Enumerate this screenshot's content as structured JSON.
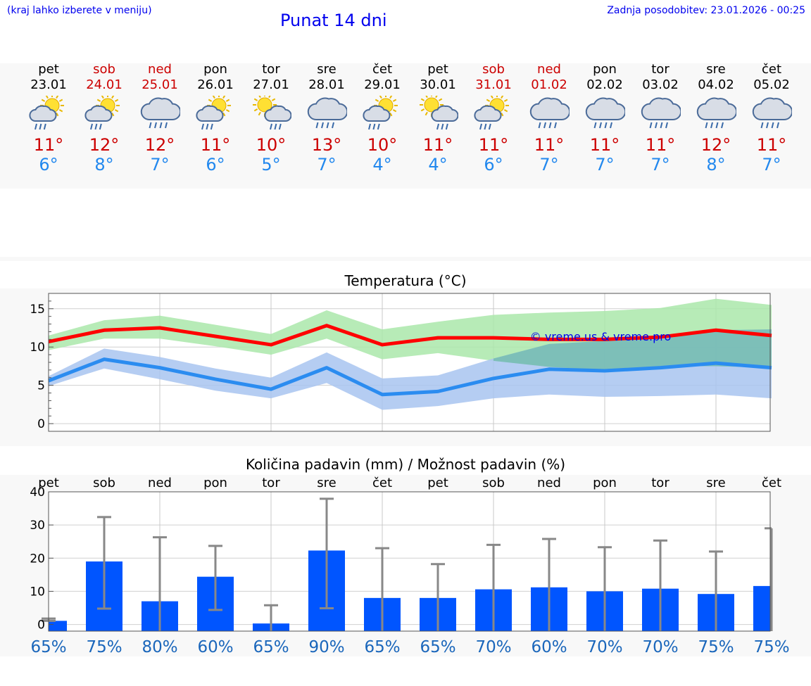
{
  "header": {
    "hint": "(kraj lahko izberete v meniju)",
    "title": "Punat 14 dni",
    "updated_label": "Zadnja posodobitev:",
    "updated_value": "23.01.2026 - 00:25"
  },
  "days": [
    {
      "name": "pet",
      "date": "23.01",
      "weekend": false,
      "icon": "sun-cloud-rain-icon",
      "tmax": "11°",
      "tmin": "6°"
    },
    {
      "name": "sob",
      "date": "24.01",
      "weekend": true,
      "icon": "sun-cloud-rain-icon",
      "tmax": "12°",
      "tmin": "8°"
    },
    {
      "name": "ned",
      "date": "25.01",
      "weekend": true,
      "icon": "cloud-rain-icon",
      "tmax": "12°",
      "tmin": "7°"
    },
    {
      "name": "pon",
      "date": "26.01",
      "weekend": false,
      "icon": "sun-cloud-rain-icon",
      "tmax": "11°",
      "tmin": "6°"
    },
    {
      "name": "tor",
      "date": "27.01",
      "weekend": false,
      "icon": "sun-small-cloud-rain-icon",
      "tmax": "10°",
      "tmin": "5°"
    },
    {
      "name": "sre",
      "date": "28.01",
      "weekend": false,
      "icon": "cloud-rain-icon",
      "tmax": "13°",
      "tmin": "7°"
    },
    {
      "name": "čet",
      "date": "29.01",
      "weekend": false,
      "icon": "sun-cloud-rain-icon",
      "tmax": "10°",
      "tmin": "4°"
    },
    {
      "name": "pet",
      "date": "30.01",
      "weekend": false,
      "icon": "sun-small-cloud-rain-icon",
      "tmax": "11°",
      "tmin": "4°"
    },
    {
      "name": "sob",
      "date": "31.01",
      "weekend": true,
      "icon": "sun-cloud-rain-icon",
      "tmax": "11°",
      "tmin": "6°"
    },
    {
      "name": "ned",
      "date": "01.02",
      "weekend": true,
      "icon": "cloud-rain-icon",
      "tmax": "11°",
      "tmin": "7°"
    },
    {
      "name": "pon",
      "date": "02.02",
      "weekend": false,
      "icon": "cloud-rain-icon",
      "tmax": "11°",
      "tmin": "7°"
    },
    {
      "name": "tor",
      "date": "03.02",
      "weekend": false,
      "icon": "cloud-rain-icon",
      "tmax": "11°",
      "tmin": "7°"
    },
    {
      "name": "sre",
      "date": "04.02",
      "weekend": false,
      "icon": "cloud-rain-icon",
      "tmax": "12°",
      "tmin": "8°"
    },
    {
      "name": "čet",
      "date": "05.02",
      "weekend": false,
      "icon": "cloud-rain-icon",
      "tmax": "11°",
      "tmin": "7°"
    }
  ],
  "chart_data": [
    {
      "type": "line",
      "title": "Temperatura (°C)",
      "watermark": "© vreme.us & vreme.pro",
      "ylim": [
        -1,
        17
      ],
      "yticks": [
        0,
        5,
        10,
        15
      ],
      "x": [
        0,
        1,
        2,
        3,
        4,
        5,
        6,
        7,
        8,
        9,
        10,
        11,
        12,
        13
      ],
      "series": [
        {
          "name": "max",
          "color": "#ff0000",
          "values": [
            10.7,
            12.2,
            12.5,
            11.4,
            10.3,
            12.8,
            10.3,
            11.2,
            11.2,
            11.0,
            11.0,
            11.3,
            12.2,
            11.5
          ],
          "band_low": [
            9.6,
            11.1,
            11.1,
            10.1,
            9.0,
            11.1,
            8.4,
            9.2,
            8.2,
            7.4,
            7.0,
            7.5,
            7.5,
            7.3
          ],
          "band_high": [
            11.5,
            13.5,
            14.1,
            12.9,
            11.7,
            14.8,
            12.3,
            13.3,
            14.2,
            14.5,
            14.7,
            15.1,
            16.3,
            15.5
          ],
          "band_color": "#aae8aa"
        },
        {
          "name": "min",
          "color": "#2b8cf0",
          "values": [
            5.6,
            8.4,
            7.3,
            5.8,
            4.5,
            7.3,
            3.8,
            4.2,
            5.9,
            7.1,
            6.9,
            7.3,
            7.9,
            7.3
          ],
          "band_low": [
            4.9,
            7.2,
            5.8,
            4.3,
            3.3,
            5.3,
            1.8,
            2.3,
            3.3,
            3.8,
            3.5,
            3.6,
            3.8,
            3.3
          ],
          "band_high": [
            6.2,
            9.8,
            8.7,
            7.2,
            6.0,
            9.3,
            5.9,
            6.3,
            8.5,
            10.4,
            10.8,
            11.0,
            12.2,
            12.3
          ],
          "band_color": "#a8c4f0"
        }
      ]
    },
    {
      "type": "bar",
      "title": "Količina padavin (mm) / Možnost padavin (%)",
      "ylim": [
        -2,
        40
      ],
      "yticks": [
        0,
        10,
        20,
        30,
        40
      ],
      "categories": [
        "pet",
        "sob",
        "ned",
        "pon",
        "tor",
        "sre",
        "čet",
        "pet",
        "sob",
        "ned",
        "pon",
        "tor",
        "sre",
        "čet"
      ],
      "values": [
        1.1,
        19.0,
        7.0,
        14.4,
        0.3,
        22.3,
        8.0,
        8.0,
        10.6,
        11.2,
        10.0,
        10.8,
        9.2,
        11.6
      ],
      "err_low": [
        1.1,
        4.8,
        0,
        4.4,
        0,
        4.9,
        0,
        0,
        0,
        0,
        0,
        0,
        0,
        0
      ],
      "err_high": [
        1.8,
        32.4,
        26.3,
        23.7,
        5.8,
        37.9,
        23.0,
        18.2,
        24.0,
        25.8,
        23.3,
        25.3,
        22.0,
        29.0
      ],
      "probabilities": [
        "65%",
        "75%",
        "80%",
        "60%",
        "65%",
        "90%",
        "65%",
        "65%",
        "70%",
        "60%",
        "70%",
        "70%",
        "75%",
        "75%"
      ],
      "bar_color": "#0055ff",
      "prob_color": "#1a66bb"
    }
  ]
}
